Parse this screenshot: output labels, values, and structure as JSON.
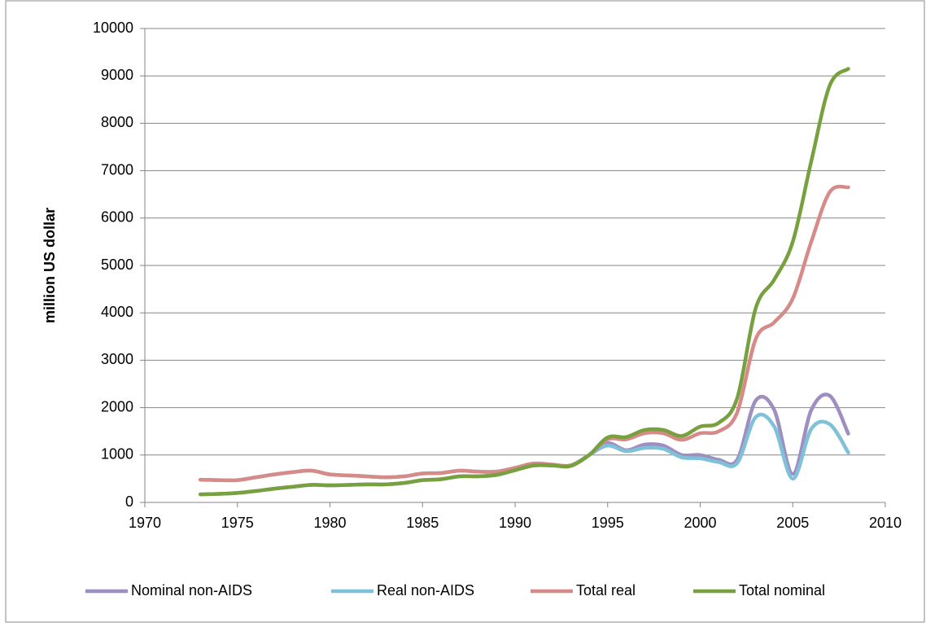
{
  "chart_data": {
    "type": "line",
    "ylabel": "million US dollar",
    "x": [
      1973,
      1974,
      1975,
      1976,
      1977,
      1978,
      1979,
      1980,
      1981,
      1982,
      1983,
      1984,
      1985,
      1986,
      1987,
      1988,
      1989,
      1990,
      1991,
      1992,
      1993,
      1994,
      1995,
      1996,
      1997,
      1998,
      1999,
      2000,
      2001,
      2002,
      2003,
      2004,
      2005,
      2006,
      2007,
      2008
    ],
    "series": [
      {
        "name": "Nominal non-AIDS",
        "color": "#9e8fc0",
        "values": [
          170,
          180,
          200,
          240,
          290,
          330,
          370,
          360,
          370,
          380,
          380,
          410,
          470,
          490,
          550,
          550,
          580,
          680,
          780,
          780,
          770,
          1000,
          1250,
          1100,
          1220,
          1200,
          1000,
          1000,
          900,
          900,
          2150,
          1950,
          600,
          1950,
          2250,
          1450
        ]
      },
      {
        "name": "Real non-AIDS",
        "color": "#7fc1d8",
        "values": [
          480,
          470,
          470,
          530,
          590,
          640,
          670,
          590,
          570,
          550,
          530,
          550,
          610,
          620,
          670,
          650,
          650,
          730,
          820,
          800,
          780,
          1000,
          1200,
          1080,
          1150,
          1130,
          950,
          930,
          850,
          830,
          1800,
          1600,
          500,
          1550,
          1650,
          1050
        ]
      },
      {
        "name": "Total real",
        "color": "#d68b88",
        "values": [
          480,
          470,
          470,
          530,
          590,
          640,
          670,
          590,
          570,
          550,
          530,
          550,
          610,
          620,
          670,
          650,
          650,
          730,
          820,
          800,
          780,
          1000,
          1330,
          1330,
          1460,
          1460,
          1320,
          1460,
          1500,
          1900,
          3450,
          3800,
          4300,
          5500,
          6550,
          6650
        ]
      },
      {
        "name": "Total nominal",
        "color": "#77a03f",
        "values": [
          170,
          180,
          200,
          240,
          290,
          330,
          370,
          360,
          370,
          380,
          380,
          410,
          470,
          490,
          550,
          550,
          580,
          680,
          780,
          780,
          770,
          1000,
          1370,
          1380,
          1530,
          1530,
          1400,
          1600,
          1680,
          2200,
          4100,
          4700,
          5500,
          7200,
          8800,
          9150
        ]
      }
    ],
    "xlim": [
      1970,
      2010
    ],
    "xticks": [
      1970,
      1975,
      1980,
      1985,
      1990,
      1995,
      2000,
      2005,
      2010
    ],
    "ylim": [
      0,
      10000
    ],
    "yticks": [
      0,
      1000,
      2000,
      3000,
      4000,
      5000,
      6000,
      7000,
      8000,
      9000,
      10000
    ],
    "grid": true,
    "legend": "bottom"
  }
}
